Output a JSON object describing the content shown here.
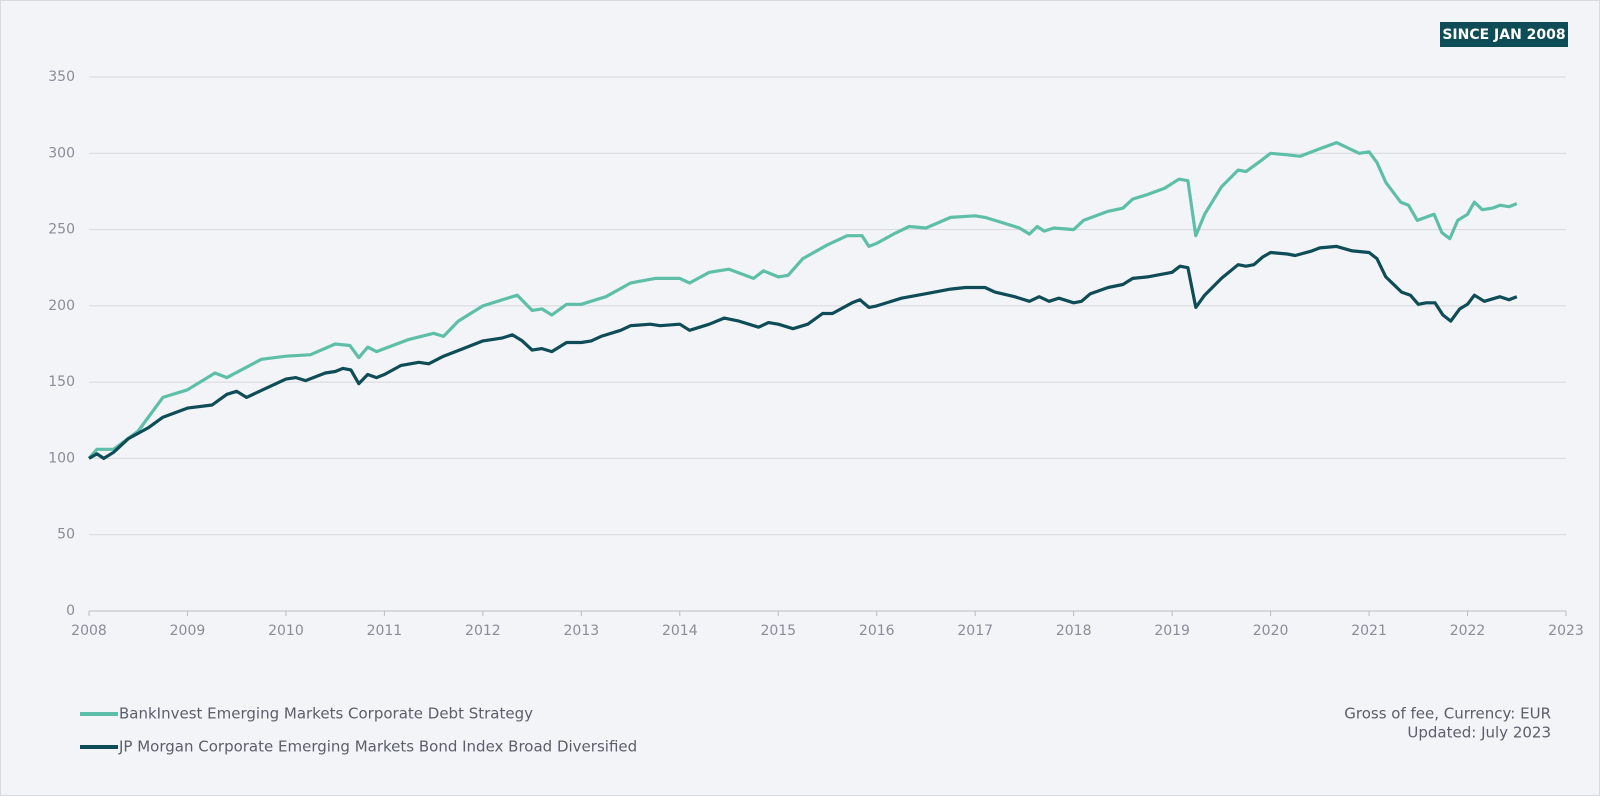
{
  "chart_data": {
    "type": "line",
    "badge": "SINCE JAN 2008",
    "notes": [
      "Gross of fee, Currency: EUR",
      "Updated: July 2023"
    ],
    "xlim": [
      2008,
      2023
    ],
    "xticks": [
      2008,
      2009,
      2010,
      2011,
      2012,
      2013,
      2014,
      2015,
      2016,
      2017,
      2018,
      2019,
      2020,
      2021,
      2022,
      2023
    ],
    "ylim": [
      0,
      350
    ],
    "yticks": [
      0,
      50,
      100,
      150,
      200,
      250,
      300,
      350
    ],
    "grid": true,
    "legend": "bottom-left",
    "series": [
      {
        "name": "BankInvest Emerging Markets Corporate Debt Strategy",
        "color": "#5ebfa9",
        "x": [
          2008.0,
          2008.08,
          2008.25,
          2008.5,
          2008.75,
          2009.0,
          2009.28,
          2009.4,
          2009.75,
          2010.0,
          2010.25,
          2010.5,
          2010.65,
          2010.74,
          2010.83,
          2010.92,
          2011.0,
          2011.25,
          2011.5,
          2011.6,
          2011.75,
          2012.0,
          2012.25,
          2012.35,
          2012.5,
          2012.6,
          2012.7,
          2012.85,
          2013.0,
          2013.25,
          2013.5,
          2013.75,
          2014.0,
          2014.1,
          2014.3,
          2014.5,
          2014.75,
          2014.85,
          2015.0,
          2015.1,
          2015.25,
          2015.5,
          2015.7,
          2015.85,
          2015.92,
          2016.0,
          2016.17,
          2016.33,
          2016.5,
          2016.75,
          2017.0,
          2017.1,
          2017.25,
          2017.45,
          2017.55,
          2017.63,
          2017.7,
          2017.8,
          2018.0,
          2018.1,
          2018.35,
          2018.5,
          2018.6,
          2018.75,
          2018.92,
          2019.07,
          2019.16,
          2019.24,
          2019.33,
          2019.5,
          2019.67,
          2019.75,
          2019.92,
          2020.0,
          2020.17,
          2020.3,
          2020.5,
          2020.67,
          2020.9,
          2021.0,
          2021.08,
          2021.17,
          2021.32,
          2021.4,
          2021.49,
          2021.66,
          2021.74,
          2021.82,
          2021.9,
          2022.0,
          2022.07,
          2022.15,
          2022.25,
          2022.33,
          2022.42,
          2022.5
        ],
        "values": [
          100,
          106,
          106,
          118,
          140,
          145,
          156,
          153,
          165,
          167,
          168,
          175,
          174,
          166,
          173,
          170,
          172,
          178,
          182,
          180,
          190,
          200,
          205,
          207,
          197,
          198,
          194,
          201,
          201,
          206,
          215,
          218,
          218,
          215,
          222,
          224,
          218,
          223,
          219,
          220,
          231,
          240,
          246,
          246,
          239,
          241,
          247,
          252,
          251,
          258,
          259,
          258,
          255,
          251,
          247,
          252,
          249,
          251,
          250,
          256,
          262,
          264,
          270,
          273,
          277,
          283,
          282,
          246,
          260,
          278,
          289,
          288,
          296,
          300,
          299,
          298,
          303,
          307,
          300,
          301,
          294,
          281,
          268,
          266,
          256,
          260,
          248,
          244,
          256,
          260,
          268,
          263,
          264,
          266,
          265,
          267
        ]
      },
      {
        "name": "JP Morgan Corporate Emerging Markets Bond Index Broad Diversified",
        "color": "#0e4c57",
        "x": [
          2008.0,
          2008.08,
          2008.15,
          2008.25,
          2008.4,
          2008.6,
          2008.75,
          2009.0,
          2009.25,
          2009.4,
          2009.5,
          2009.6,
          2009.8,
          2010.0,
          2010.1,
          2010.2,
          2010.4,
          2010.5,
          2010.58,
          2010.66,
          2010.74,
          2010.83,
          2010.92,
          2011.0,
          2011.17,
          2011.35,
          2011.45,
          2011.6,
          2011.8,
          2012.0,
          2012.2,
          2012.3,
          2012.4,
          2012.5,
          2012.6,
          2012.7,
          2012.85,
          2013.0,
          2013.1,
          2013.2,
          2013.4,
          2013.5,
          2013.7,
          2013.8,
          2014.0,
          2014.1,
          2014.3,
          2014.45,
          2014.6,
          2014.8,
          2014.9,
          2015.0,
          2015.15,
          2015.3,
          2015.45,
          2015.55,
          2015.75,
          2015.83,
          2015.92,
          2016.0,
          2016.25,
          2016.5,
          2016.75,
          2016.9,
          2017.0,
          2017.1,
          2017.2,
          2017.4,
          2017.55,
          2017.65,
          2017.75,
          2017.85,
          2018.0,
          2018.08,
          2018.17,
          2018.35,
          2018.5,
          2018.6,
          2018.75,
          2019.0,
          2019.08,
          2019.16,
          2019.24,
          2019.33,
          2019.5,
          2019.67,
          2019.75,
          2019.83,
          2019.92,
          2020.0,
          2020.17,
          2020.25,
          2020.42,
          2020.5,
          2020.67,
          2020.83,
          2021.0,
          2021.08,
          2021.17,
          2021.33,
          2021.42,
          2021.5,
          2021.58,
          2021.67,
          2021.75,
          2021.83,
          2021.92,
          2022.0,
          2022.07,
          2022.17,
          2022.33,
          2022.42,
          2022.5
        ],
        "values": [
          100,
          103,
          100,
          104,
          113,
          120,
          127,
          133,
          135,
          142,
          144,
          140,
          146,
          152,
          153,
          151,
          156,
          157,
          159,
          158,
          149,
          155,
          153,
          155,
          161,
          163,
          162,
          167,
          172,
          177,
          179,
          181,
          177,
          171,
          172,
          170,
          176,
          176,
          177,
          180,
          184,
          187,
          188,
          187,
          188,
          184,
          188,
          192,
          190,
          186,
          189,
          188,
          185,
          188,
          195,
          195,
          202,
          204,
          199,
          200,
          205,
          208,
          211,
          212,
          212,
          212,
          209,
          206,
          203,
          206,
          203,
          205,
          202,
          203,
          208,
          212,
          214,
          218,
          219,
          222,
          226,
          225,
          199,
          207,
          218,
          227,
          226,
          227,
          232,
          235,
          234,
          233,
          236,
          238,
          239,
          236,
          235,
          231,
          219,
          209,
          207,
          201,
          202,
          202,
          194,
          190,
          198,
          201,
          207,
          203,
          206,
          204,
          206
        ]
      }
    ]
  }
}
